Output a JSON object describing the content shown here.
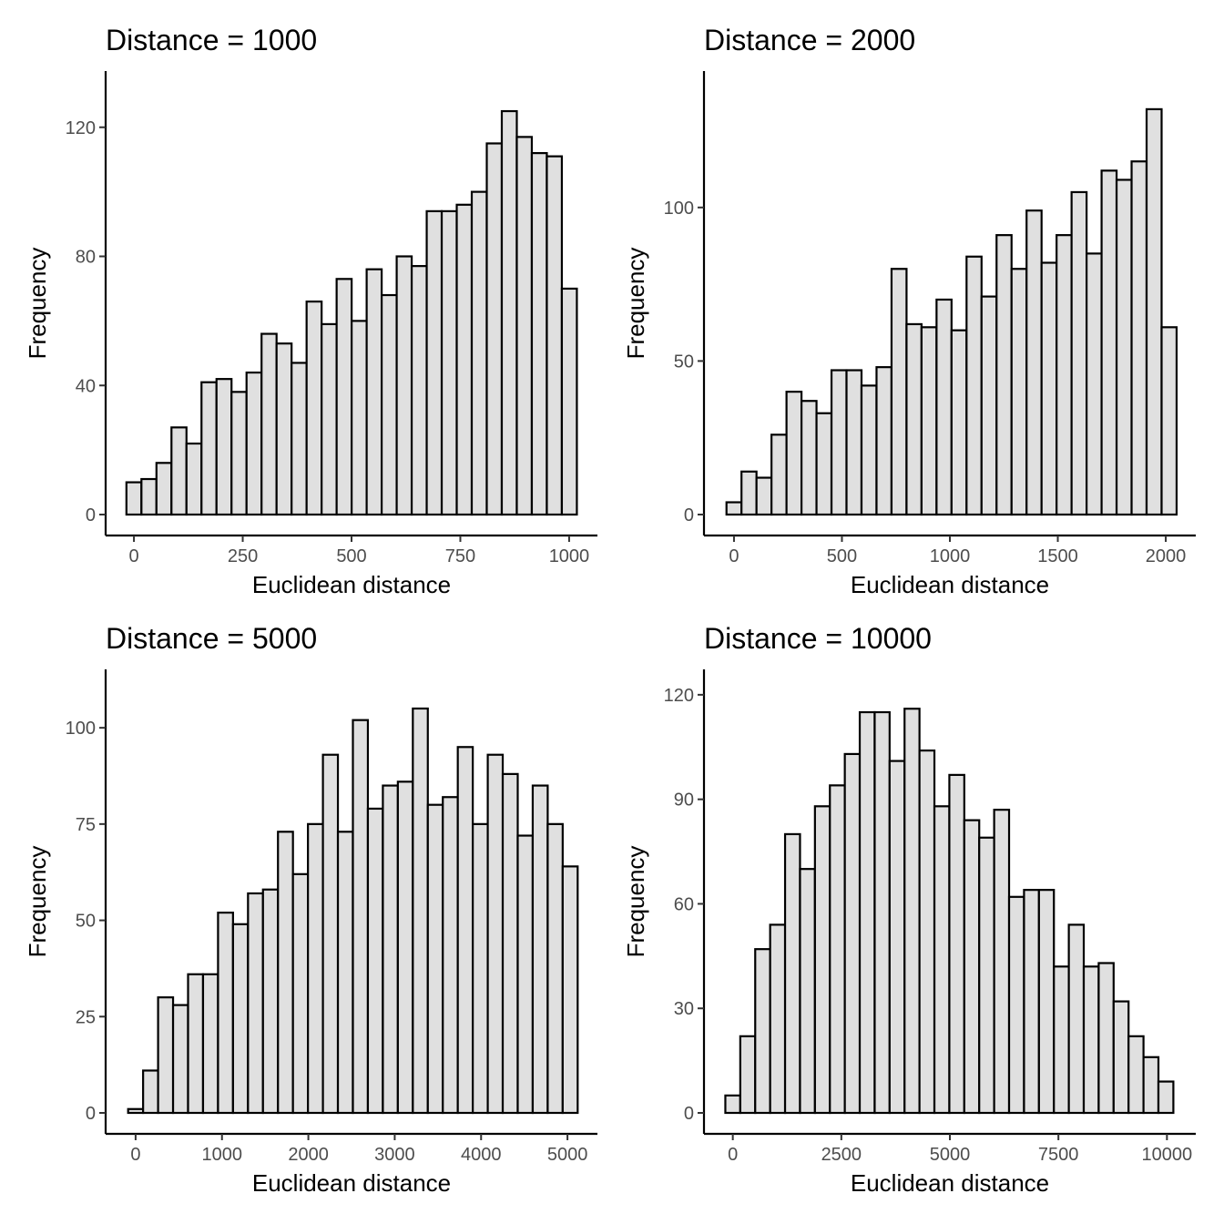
{
  "chart_data": [
    {
      "type": "bar",
      "title": "Distance =  1000",
      "xlabel": "Euclidean distance",
      "ylabel": "Frequency",
      "x_ticks": [
        0,
        250,
        500,
        750,
        1000
      ],
      "x_tick_labels": [
        "0",
        "250",
        "500",
        "750",
        "1000"
      ],
      "y_ticks": [
        0,
        40,
        80,
        120
      ],
      "y_tick_labels": [
        "0",
        "40",
        "80",
        "120"
      ],
      "xlim": [
        -65,
        1065
      ],
      "ylim": [
        0,
        131.5
      ],
      "bin_width": 34.5,
      "bin_centers": [
        0,
        34.5,
        69,
        103.5,
        138,
        172.5,
        207,
        241.5,
        276,
        310.5,
        345,
        379.5,
        414,
        448.5,
        483,
        517.5,
        552,
        586.5,
        621,
        655.5,
        690,
        724.5,
        759,
        793.5,
        828,
        862.5,
        897,
        931.5,
        966,
        1000.5
      ],
      "values": [
        10,
        11,
        16,
        27,
        22,
        41,
        42,
        38,
        44,
        56,
        53,
        47,
        66,
        59,
        73,
        60,
        76,
        68,
        80,
        77,
        94,
        94,
        96,
        100,
        115,
        125,
        117,
        112,
        111,
        70
      ],
      "grid": false
    },
    {
      "type": "bar",
      "title": "Distance =  2000",
      "xlabel": "Euclidean distance",
      "ylabel": "Frequency",
      "x_ticks": [
        0,
        500,
        1000,
        1500,
        2000
      ],
      "x_tick_labels": [
        "0",
        "500",
        "1000",
        "1500",
        "2000"
      ],
      "y_ticks": [
        0,
        50,
        100
      ],
      "y_tick_labels": [
        "0",
        "50",
        "100"
      ],
      "xlim": [
        -139,
        2139
      ],
      "ylim": [
        0,
        138.2
      ],
      "bin_width": 69.5,
      "bin_centers": [
        0,
        69.5,
        139,
        208.5,
        278,
        347.5,
        417,
        486.5,
        556,
        625.5,
        695,
        764.5,
        834,
        903.5,
        973,
        1042.5,
        1112,
        1181.5,
        1251,
        1320.5,
        1390,
        1459.5,
        1529,
        1598.5,
        1668,
        1737.5,
        1807,
        1876.5,
        1946,
        2015.5
      ],
      "values": [
        4,
        14,
        12,
        26,
        40,
        37,
        33,
        47,
        47,
        42,
        48,
        80,
        62,
        61,
        70,
        60,
        84,
        71,
        91,
        80,
        99,
        82,
        91,
        105,
        85,
        112,
        109,
        115,
        132,
        61
      ],
      "grid": false
    },
    {
      "type": "bar",
      "title": "Distance =  5000",
      "xlabel": "Euclidean distance",
      "ylabel": "Frequency",
      "x_ticks": [
        0,
        1000,
        2000,
        3000,
        4000,
        5000
      ],
      "x_tick_labels": [
        "0",
        "1000",
        "2000",
        "3000",
        "4000",
        "5000"
      ],
      "y_ticks": [
        0,
        25,
        50,
        75,
        100
      ],
      "y_tick_labels": [
        "0",
        "25",
        "50",
        "75",
        "100"
      ],
      "xlim": [
        -347,
        5347
      ],
      "ylim": [
        0,
        110.2
      ],
      "bin_width": 173.5,
      "bin_centers": [
        0,
        173.5,
        347,
        520.5,
        694,
        867.5,
        1041,
        1214.5,
        1388,
        1561.5,
        1735,
        1908.5,
        2082,
        2255.5,
        2429,
        2602.5,
        2776,
        2949.5,
        3123,
        3296.5,
        3470,
        3643.5,
        3817,
        3990.5,
        4164,
        4337.5,
        4511,
        4684.5,
        4858,
        5031.5
      ],
      "values": [
        1,
        11,
        30,
        28,
        36,
        36,
        52,
        49,
        57,
        58,
        73,
        62,
        75,
        93,
        73,
        102,
        79,
        85,
        86,
        105,
        80,
        82,
        95,
        75,
        93,
        88,
        72,
        85,
        75,
        64
      ],
      "grid": false
    },
    {
      "type": "bar",
      "title": "Distance =  10000",
      "xlabel": "Euclidean distance",
      "ylabel": "Frequency",
      "x_ticks": [
        0,
        2500,
        5000,
        7500,
        10000
      ],
      "x_tick_labels": [
        "0",
        "2500",
        "5000",
        "7500",
        "10000"
      ],
      "y_ticks": [
        0,
        30,
        60,
        90,
        120
      ],
      "y_tick_labels": [
        "0",
        "30",
        "60",
        "90",
        "120"
      ],
      "xlim": [
        -664,
        10664
      ],
      "ylim": [
        0,
        121.8
      ],
      "bin_width": 344,
      "bin_centers": [
        0,
        344,
        688,
        1032,
        1376,
        1720,
        2064,
        2408,
        2752,
        3096,
        3440,
        3784,
        4128,
        4472,
        4816,
        5160,
        5504,
        5848,
        6192,
        6536,
        6880,
        7224,
        7568,
        7912,
        8256,
        8600,
        8944,
        9288,
        9632,
        9976
      ],
      "values": [
        5,
        22,
        47,
        54,
        80,
        70,
        88,
        94,
        103,
        115,
        115,
        101,
        116,
        104,
        88,
        97,
        84,
        79,
        87,
        62,
        64,
        64,
        42,
        54,
        42,
        43,
        32,
        22,
        16,
        9
      ],
      "grid": false
    }
  ]
}
